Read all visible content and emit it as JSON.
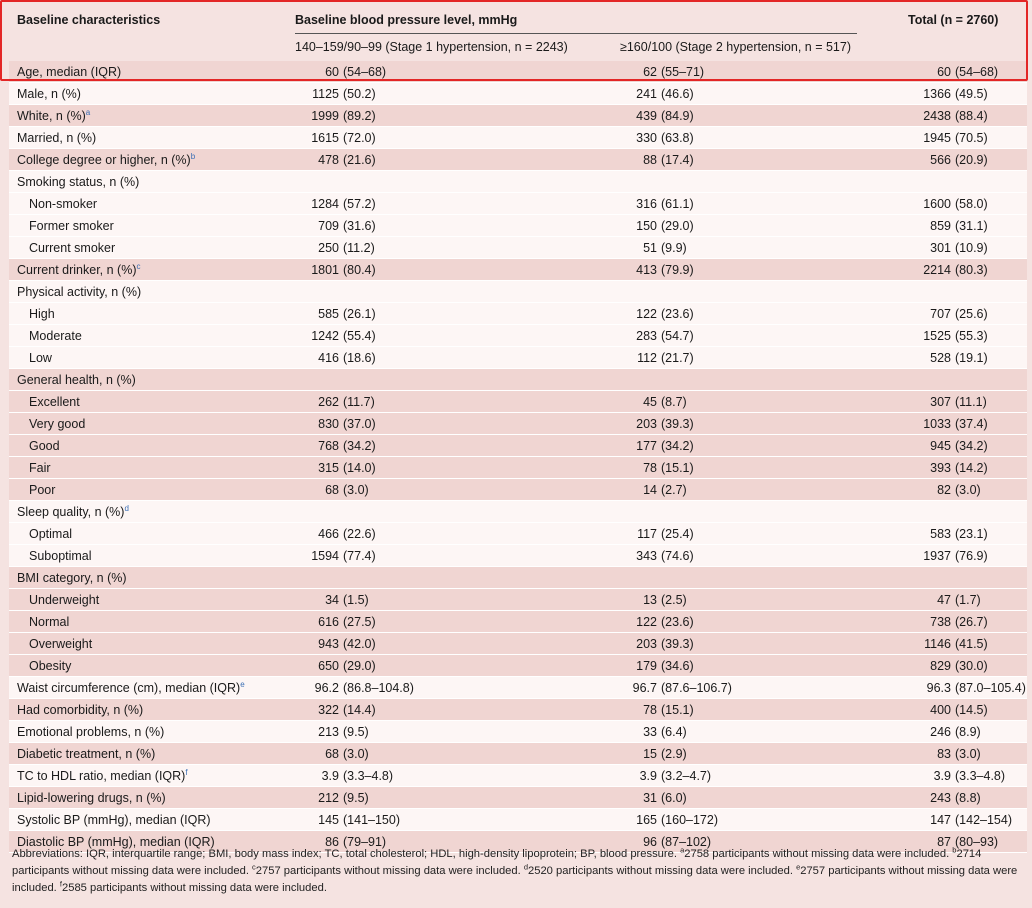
{
  "header": {
    "col0": "Baseline characteristics",
    "group": "Baseline blood pressure level, mmHg",
    "col1": "140–159/90–99 (Stage 1 hypertension, n = 2243)",
    "col2": "≥160/100 (Stage 2 hypertension, n = 517)",
    "col3": "Total (n = 2760)"
  },
  "rows": [
    {
      "label": "Age, median (IQR)",
      "sup": "",
      "indent": false,
      "v1": "60 (54–68)",
      "v2": "62 (55–71)",
      "v3": "60 (54–68)"
    },
    {
      "label": "Male, n (%)",
      "sup": "",
      "indent": false,
      "v1": "1125 (50.2)",
      "v2": "241 (46.6)",
      "v3": "1366 (49.5)"
    },
    {
      "label": "White, n (%)",
      "sup": "a",
      "indent": false,
      "v1": "1999 (89.2)",
      "v2": "439 (84.9)",
      "v3": "2438 (88.4)"
    },
    {
      "label": "Married, n (%)",
      "sup": "",
      "indent": false,
      "v1": "1615 (72.0)",
      "v2": "330 (63.8)",
      "v3": "1945 (70.5)"
    },
    {
      "label": "College degree or higher, n (%)",
      "sup": "b",
      "indent": false,
      "v1": "478 (21.6)",
      "v2": "88 (17.4)",
      "v3": "566 (20.9)"
    },
    {
      "label": "Smoking status, n (%)",
      "sup": "",
      "indent": false,
      "v1": "",
      "v2": "",
      "v3": ""
    },
    {
      "label": "Non-smoker",
      "sup": "",
      "indent": true,
      "v1": "1284 (57.2)",
      "v2": "316 (61.1)",
      "v3": "1600 (58.0)"
    },
    {
      "label": "Former smoker",
      "sup": "",
      "indent": true,
      "v1": "709 (31.6)",
      "v2": "150 (29.0)",
      "v3": "859 (31.1)"
    },
    {
      "label": "Current smoker",
      "sup": "",
      "indent": true,
      "v1": "250 (11.2)",
      "v2": "51 (9.9)",
      "v3": "301 (10.9)"
    },
    {
      "label": "Current drinker, n (%)",
      "sup": "c",
      "indent": false,
      "v1": "1801 (80.4)",
      "v2": "413 (79.9)",
      "v3": "2214 (80.3)"
    },
    {
      "label": "Physical activity, n (%)",
      "sup": "",
      "indent": false,
      "v1": "",
      "v2": "",
      "v3": ""
    },
    {
      "label": "High",
      "sup": "",
      "indent": true,
      "v1": "585 (26.1)",
      "v2": "122 (23.6)",
      "v3": "707 (25.6)"
    },
    {
      "label": "Moderate",
      "sup": "",
      "indent": true,
      "v1": "1242 (55.4)",
      "v2": "283 (54.7)",
      "v3": "1525 (55.3)"
    },
    {
      "label": "Low",
      "sup": "",
      "indent": true,
      "v1": "416 (18.6)",
      "v2": "112 (21.7)",
      "v3": "528 (19.1)"
    },
    {
      "label": "General health, n (%)",
      "sup": "",
      "indent": false,
      "v1": "",
      "v2": "",
      "v3": ""
    },
    {
      "label": "Excellent",
      "sup": "",
      "indent": true,
      "v1": "262 (11.7)",
      "v2": "45 (8.7)",
      "v3": "307 (11.1)"
    },
    {
      "label": "Very good",
      "sup": "",
      "indent": true,
      "v1": "830 (37.0)",
      "v2": "203 (39.3)",
      "v3": "1033 (37.4)"
    },
    {
      "label": "Good",
      "sup": "",
      "indent": true,
      "v1": "768 (34.2)",
      "v2": "177 (34.2)",
      "v3": "945 (34.2)"
    },
    {
      "label": "Fair",
      "sup": "",
      "indent": true,
      "v1": "315 (14.0)",
      "v2": "78 (15.1)",
      "v3": "393 (14.2)"
    },
    {
      "label": "Poor",
      "sup": "",
      "indent": true,
      "v1": "68 (3.0)",
      "v2": "14 (2.7)",
      "v3": "82 (3.0)"
    },
    {
      "label": "Sleep quality, n (%)",
      "sup": "d",
      "indent": false,
      "v1": "",
      "v2": "",
      "v3": ""
    },
    {
      "label": "Optimal",
      "sup": "",
      "indent": true,
      "v1": "466 (22.6)",
      "v2": "117 (25.4)",
      "v3": "583 (23.1)"
    },
    {
      "label": "Suboptimal",
      "sup": "",
      "indent": true,
      "v1": "1594 (77.4)",
      "v2": "343 (74.6)",
      "v3": "1937 (76.9)"
    },
    {
      "label": "BMI category, n (%)",
      "sup": "",
      "indent": false,
      "v1": "",
      "v2": "",
      "v3": ""
    },
    {
      "label": "Underweight",
      "sup": "",
      "indent": true,
      "v1": "34 (1.5)",
      "v2": "13 (2.5)",
      "v3": "47 (1.7)"
    },
    {
      "label": "Normal",
      "sup": "",
      "indent": true,
      "v1": "616 (27.5)",
      "v2": "122 (23.6)",
      "v3": "738 (26.7)"
    },
    {
      "label": "Overweight",
      "sup": "",
      "indent": true,
      "v1": "943 (42.0)",
      "v2": "203 (39.3)",
      "v3": "1146 (41.5)"
    },
    {
      "label": "Obesity",
      "sup": "",
      "indent": true,
      "v1": "650 (29.0)",
      "v2": "179 (34.6)",
      "v3": "829 (30.0)"
    },
    {
      "label": "Waist circumference (cm), median (IQR)",
      "sup": "e",
      "indent": false,
      "v1": "96.2 (86.8–104.8)",
      "v2": "96.7 (87.6–106.7)",
      "v3": "96.3 (87.0–105.4)"
    },
    {
      "label": "Had comorbidity, n (%)",
      "sup": "",
      "indent": false,
      "v1": "322 (14.4)",
      "v2": "78 (15.1)",
      "v3": "400 (14.5)"
    },
    {
      "label": "Emotional problems, n (%)",
      "sup": "",
      "indent": false,
      "v1": "213 (9.5)",
      "v2": "33 (6.4)",
      "v3": "246 (8.9)"
    },
    {
      "label": "Diabetic treatment, n (%)",
      "sup": "",
      "indent": false,
      "v1": "68 (3.0)",
      "v2": "15 (2.9)",
      "v3": "83 (3.0)"
    },
    {
      "label": "TC to HDL ratio, median (IQR)",
      "sup": "f",
      "indent": false,
      "v1": "3.9 (3.3–4.8)",
      "v2": "3.9 (3.2–4.7)",
      "v3": "3.9 (3.3–4.8)"
    },
    {
      "label": "Lipid-lowering drugs, n (%)",
      "sup": "",
      "indent": false,
      "v1": "212 (9.5)",
      "v2": "31 (6.0)",
      "v3": "243 (8.8)"
    },
    {
      "label": "Systolic BP (mmHg), median (IQR)",
      "sup": "",
      "indent": false,
      "v1": "145 (141–150)",
      "v2": "165 (160–172)",
      "v3": "147 (142–154)"
    },
    {
      "label": "Diastolic BP (mmHg), median (IQR)",
      "sup": "",
      "indent": false,
      "v1": "86 (79–91)",
      "v2": "96 (87–102)",
      "v3": "87 (80–93)"
    }
  ],
  "footnote": {
    "abbrev": "Abbreviations: IQR, interquartile range; BMI, body mass index; TC, total cholesterol; HDL, high-density lipoprotein; BP, blood pressure.",
    "a": "2758 participants without missing data were included.",
    "b": "2714 participants without missing data were included.",
    "c": "2757 participants without missing data were included.",
    "d": "2520 participants without missing data were included.",
    "e": "2757 participants without missing data were included.",
    "f": "2585 participants without missing data were included."
  },
  "colors": {
    "highlight": "#e32626",
    "row_band": "#f0d5d2",
    "sup_link": "#3a6fb5"
  }
}
